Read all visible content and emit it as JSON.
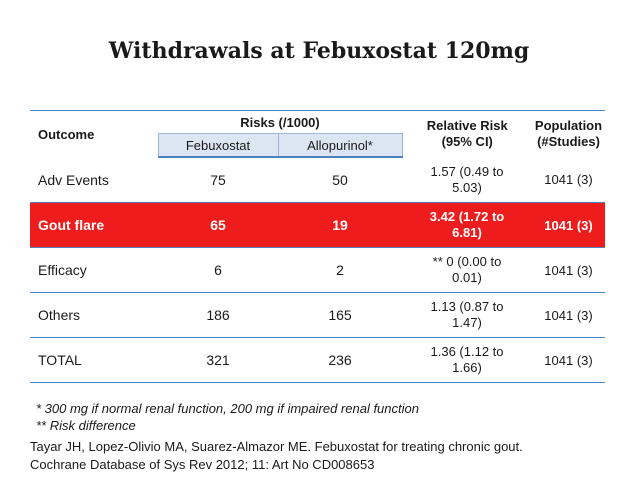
{
  "title": "Withdrawals at Febuxostat 120mg",
  "table": {
    "headers": {
      "outcome": "Outcome",
      "risks": "Risks (/1000)",
      "febuxostat": "Febuxostat",
      "allopurinol": "Allopurinol*",
      "relative_risk_1": "Relative Risk",
      "relative_risk_2": "(95% CI)",
      "population_1": "Population",
      "population_2": "(#Studies)"
    },
    "rows": [
      {
        "outcome": "Adv Events",
        "febuxostat": "75",
        "allopurinol": "50",
        "rr_1": "1.57 (0.49 to",
        "rr_2": "5.03)",
        "population": "1041 (3)"
      },
      {
        "outcome": "Gout flare",
        "febuxostat": "65",
        "allopurinol": "19",
        "rr_1": "3.42 (1.72 to",
        "rr_2": "6.81)",
        "population": "1041 (3)"
      },
      {
        "outcome": "Efficacy",
        "febuxostat": "6",
        "allopurinol": "2",
        "rr_1": "** 0 (0.00 to",
        "rr_2": "0.01)",
        "population": "1041 (3)"
      },
      {
        "outcome": "Others",
        "febuxostat": "186",
        "allopurinol": "165",
        "rr_1": "1.13 (0.87 to",
        "rr_2": "1.47)",
        "population": "1041 (3)"
      },
      {
        "outcome": "TOTAL",
        "febuxostat": "321",
        "allopurinol": "236",
        "rr_1": "1.36 (1.12 to",
        "rr_2": "1.66)",
        "population": "1041 (3)"
      }
    ],
    "highlight_color": "#ee1c1c",
    "accent_color": "#4f81bd",
    "subheader_color": "#dce6f2"
  },
  "notes": {
    "line1": "* 300 mg if normal renal function, 200 mg if impaired renal function",
    "line2": "** Risk difference"
  },
  "citation": {
    "line1": "Tayar JH, Lopez-Olivio MA, Suarez-Almazor ME. Febuxostat  for treating chronic gout.",
    "line2": "Cochrane Database of Sys Rev 2012; 11: Art No CD008653"
  }
}
